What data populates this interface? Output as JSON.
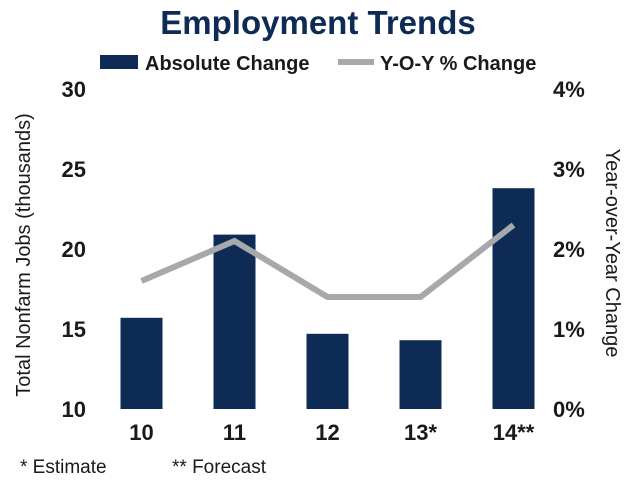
{
  "chart_data": {
    "type": "bar",
    "title": "Employment Trends",
    "categories": [
      "10",
      "11",
      "12",
      "13*",
      "14**"
    ],
    "series": [
      {
        "name": "Absolute Change",
        "kind": "bar",
        "axis": "left",
        "color": "#0d2b55",
        "values": [
          15.7,
          20.9,
          14.7,
          14.3,
          23.8
        ]
      },
      {
        "name": "Y-O-Y % Change",
        "kind": "line",
        "axis": "right",
        "color": "#a6a8ab",
        "values": [
          1.6,
          2.1,
          1.4,
          1.4,
          2.3
        ]
      }
    ],
    "ylabel": "Total Nonfarm Jobs (thousands)",
    "y2label": "Year-over-Year Change",
    "ylim": [
      10,
      30
    ],
    "y2lim": [
      0,
      4
    ],
    "yticks": [
      "10",
      "15",
      "20",
      "25",
      "30"
    ],
    "y2ticks": [
      "0%",
      "1%",
      "2%",
      "3%",
      "4%"
    ],
    "grid": false,
    "legend_position": "top-center",
    "notes": [
      "* Estimate",
      "** Forecast"
    ]
  }
}
